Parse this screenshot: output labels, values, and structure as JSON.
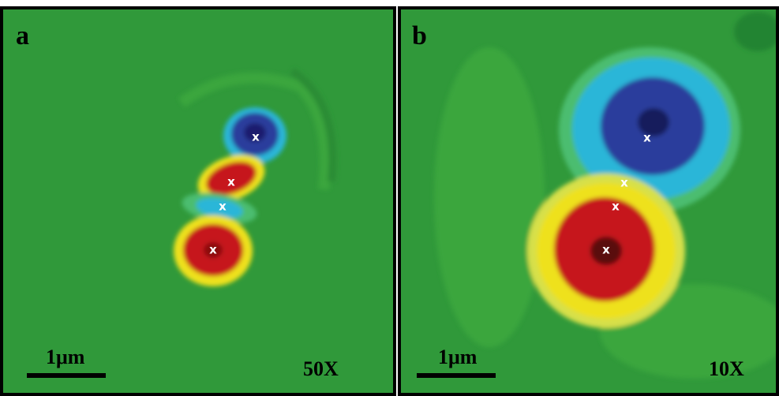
{
  "panels": [
    {
      "label": "a",
      "scale_bar": "1μm",
      "magnification": "50X",
      "markers": [
        "x",
        "x",
        "x",
        "x"
      ]
    },
    {
      "label": "b",
      "scale_bar": "1μm",
      "magnification": "10X",
      "markers": [
        "x",
        "x",
        "x",
        "x"
      ]
    }
  ]
}
